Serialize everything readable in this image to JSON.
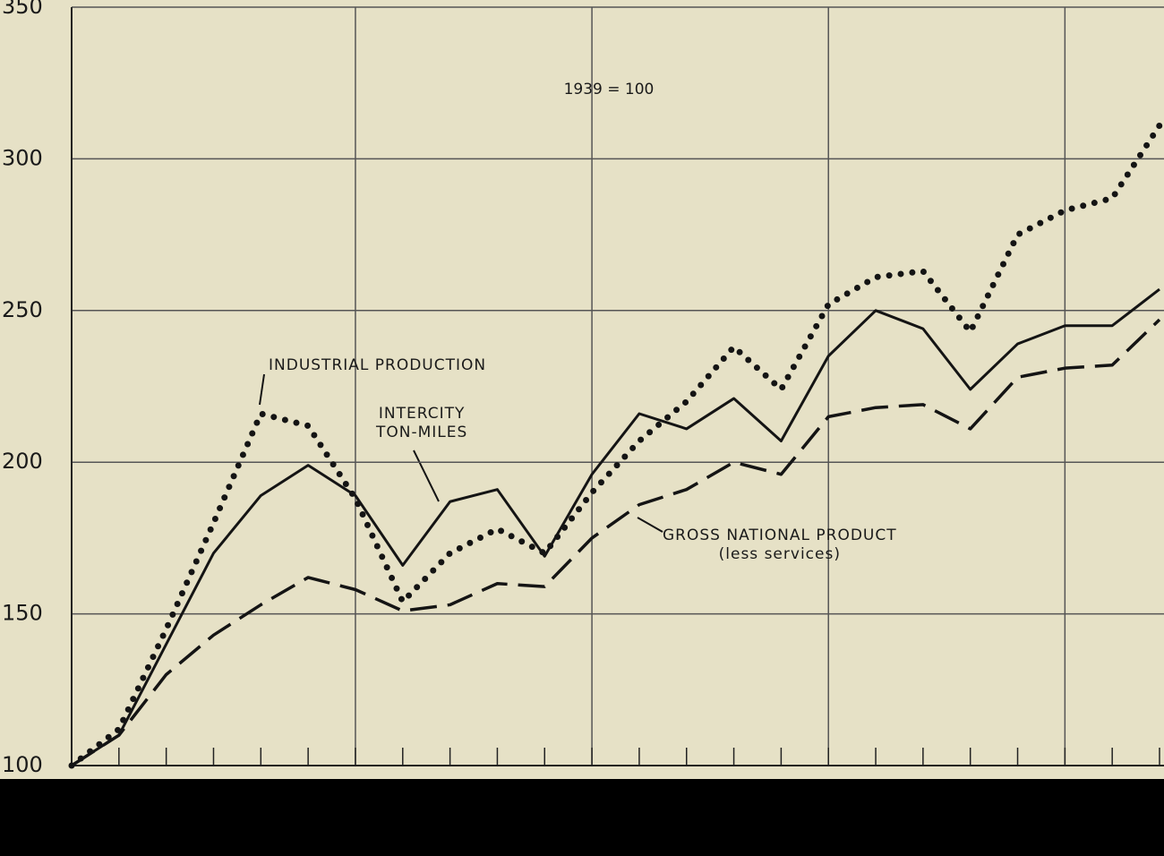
{
  "chart_data": {
    "type": "line",
    "annotations": [
      "1939 = 100"
    ],
    "categories": [
      null,
      null,
      null,
      null,
      null,
      null,
      null,
      null,
      null,
      null,
      null,
      null,
      null,
      null,
      null,
      null,
      null,
      null,
      null,
      null,
      null,
      null,
      null,
      null
    ],
    "series": [
      {
        "name": "INDUSTRIAL PRODUCTION",
        "color": "#141414",
        "style": "dotted",
        "values": [
          100,
          112,
          145,
          180,
          216,
          212,
          188,
          154,
          170,
          178,
          170,
          190,
          207,
          220,
          238,
          224,
          252,
          261,
          263,
          243,
          275,
          283,
          287,
          311
        ]
      },
      {
        "name": "INTERCITY\nTON-MILES",
        "color": "#141414",
        "style": "solid",
        "values": [
          100,
          110,
          140,
          170,
          189,
          199,
          189,
          166,
          187,
          191,
          169,
          196,
          216,
          211,
          221,
          207,
          235,
          250,
          244,
          224,
          239,
          245,
          245,
          257
        ]
      },
      {
        "name": "GROSS NATIONAL PRODUCT\n(less services)",
        "color": "#141414",
        "style": "dashed",
        "values": [
          100,
          110,
          130,
          143,
          153,
          162,
          158,
          151,
          153,
          160,
          159,
          175,
          186,
          191,
          200,
          196,
          215,
          218,
          219,
          211,
          228,
          231,
          232,
          247
        ]
      }
    ],
    "ylim": [
      100,
      350
    ],
    "yticks": [
      100,
      150,
      200,
      250,
      300,
      350
    ],
    "grid": true
  }
}
